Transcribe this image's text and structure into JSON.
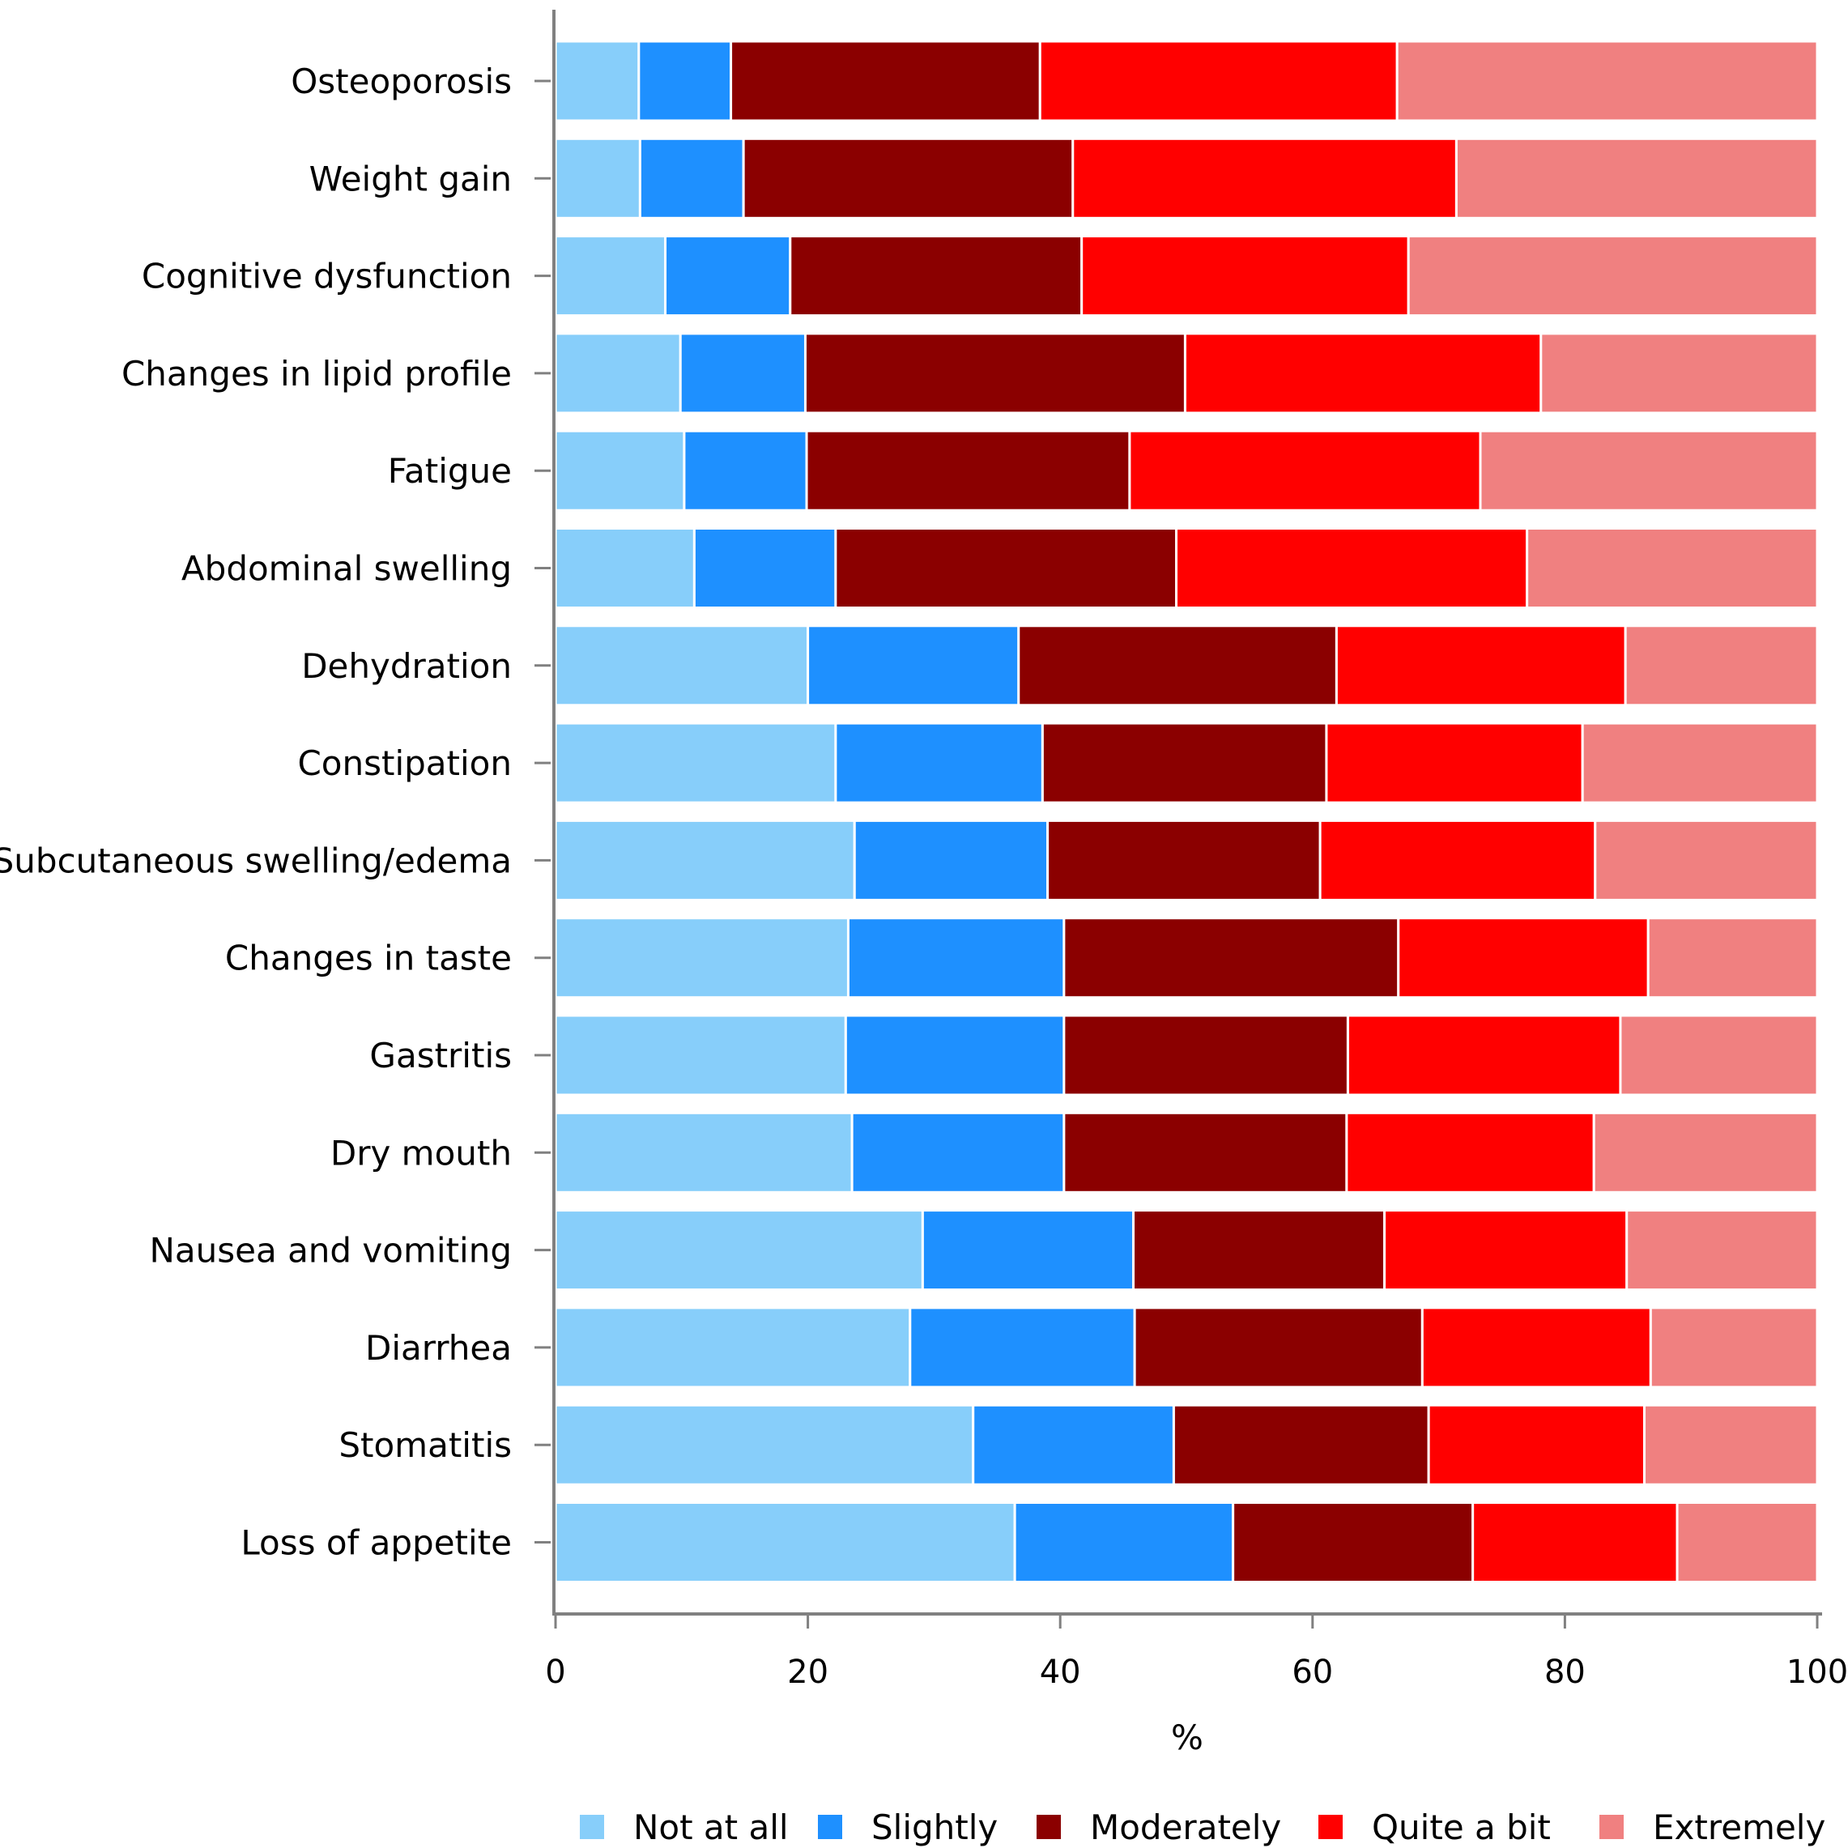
{
  "chart_data": {
    "type": "bar",
    "orientation": "horizontal",
    "stacked": true,
    "title": "",
    "xlabel": "%",
    "ylabel": "",
    "xlim": [
      0,
      100
    ],
    "xticks": [
      "0",
      "20",
      "40",
      "60",
      "80",
      "100"
    ],
    "categories": [
      "Osteoporosis",
      "Weight gain",
      "Cognitive dysfunction",
      "Changes in lipid profile",
      "Fatigue",
      "Abdominal swelling",
      "Dehydration",
      "Constipation",
      "Subcutaneous swelling/edema",
      "Changes in taste",
      "Gastritis",
      "Dry mouth",
      "Nausea and vomiting",
      "Diarrhea",
      "Stomatitis",
      "Loss of appetite"
    ],
    "series": [
      {
        "name": "Not at all",
        "color": "#87CEFA",
        "values": [
          6.6,
          6.7,
          8.7,
          9.9,
          10.2,
          11.0,
          20.0,
          22.2,
          23.7,
          23.2,
          23.0,
          23.5,
          29.1,
          28.1,
          33.1,
          36.4
        ]
      },
      {
        "name": "Slightly",
        "color": "#1E90FF",
        "values": [
          7.3,
          8.2,
          9.9,
          9.9,
          9.7,
          11.2,
          16.7,
          16.4,
          15.3,
          17.1,
          17.3,
          16.8,
          16.7,
          17.8,
          15.9,
          17.3
        ]
      },
      {
        "name": "Moderately",
        "color": "#8B0000",
        "values": [
          24.5,
          26.1,
          23.1,
          30.1,
          25.6,
          27.0,
          25.2,
          22.5,
          21.6,
          26.5,
          22.5,
          22.4,
          19.9,
          22.8,
          20.2,
          19.0
        ]
      },
      {
        "name": "Quite a bit",
        "color": "#FF0000",
        "values": [
          28.3,
          30.4,
          25.9,
          28.2,
          27.8,
          27.8,
          22.9,
          20.3,
          21.8,
          19.8,
          21.6,
          19.6,
          19.2,
          18.1,
          17.1,
          16.2
        ]
      },
      {
        "name": "Extremely",
        "color": "#F08080",
        "values": [
          33.3,
          28.6,
          32.4,
          21.9,
          26.7,
          23.0,
          15.2,
          18.6,
          17.6,
          13.4,
          15.6,
          17.7,
          15.1,
          13.2,
          13.7,
          11.1
        ]
      }
    ],
    "legend_position": "bottom",
    "grid": false
  }
}
